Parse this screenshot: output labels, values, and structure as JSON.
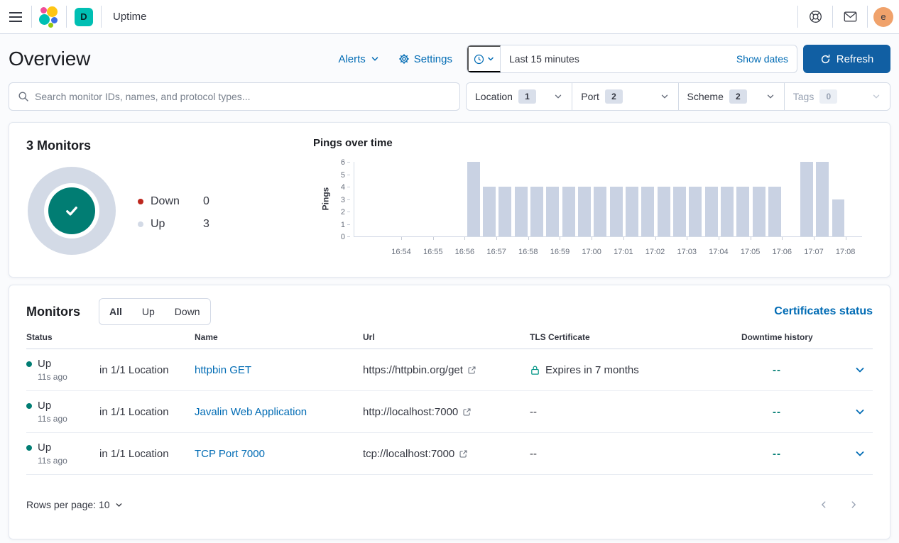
{
  "app": {
    "breadcrumb": "Uptime",
    "deployment_badge": "D",
    "avatar_initial": "e"
  },
  "page_header": {
    "title": "Overview",
    "alerts_label": "Alerts",
    "settings_label": "Settings",
    "time_range_value": "Last 15 minutes",
    "show_dates_label": "Show dates",
    "refresh_label": "Refresh"
  },
  "filters": {
    "search_placeholder": "Search monitor IDs, names, and protocol types...",
    "items": [
      {
        "label": "Location",
        "count": "1",
        "disabled": false
      },
      {
        "label": "Port",
        "count": "2",
        "disabled": false
      },
      {
        "label": "Scheme",
        "count": "2",
        "disabled": false
      },
      {
        "label": "Tags",
        "count": "0",
        "disabled": true
      }
    ]
  },
  "snapshot": {
    "title": "3 Monitors",
    "legend": [
      {
        "label": "Down",
        "value": "0",
        "color": "#BD271E"
      },
      {
        "label": "Up",
        "value": "3",
        "color": "#D3DAE6"
      }
    ]
  },
  "chart_data": {
    "type": "bar",
    "title": "Pings over time",
    "ylabel": "Pings",
    "ylim": [
      0,
      6
    ],
    "y_ticks": [
      0,
      1,
      2,
      3,
      4,
      5,
      6
    ],
    "x_domain": [
      "16:52:30",
      "17:08:30"
    ],
    "bucket_seconds": 30,
    "bar_color": "#C9D2E3",
    "grid": false,
    "x_tick_labels": [
      "16:54",
      "16:55",
      "16:56",
      "16:57",
      "16:58",
      "16:59",
      "17:00",
      "17:01",
      "17:02",
      "17:03",
      "17:04",
      "17:05",
      "17:06",
      "17:07",
      "17:08"
    ],
    "x": [
      "16:56:00",
      "16:56:30",
      "16:57:00",
      "16:57:30",
      "16:58:00",
      "16:58:30",
      "16:59:00",
      "16:59:30",
      "17:00:00",
      "17:00:30",
      "17:01:00",
      "17:01:30",
      "17:02:00",
      "17:02:30",
      "17:03:00",
      "17:03:30",
      "17:04:00",
      "17:04:30",
      "17:05:00",
      "17:05:30",
      "17:06:00",
      "17:06:30",
      "17:07:00",
      "17:07:30"
    ],
    "values": [
      6,
      4,
      4,
      4,
      4,
      4,
      4,
      4,
      4,
      4,
      4,
      4,
      4,
      4,
      4,
      4,
      4,
      4,
      4,
      4,
      0,
      6,
      6,
      3
    ]
  },
  "monitors": {
    "title": "Monitors",
    "tabs": [
      {
        "label": "All",
        "active": true
      },
      {
        "label": "Up",
        "active": false
      },
      {
        "label": "Down",
        "active": false
      }
    ],
    "certificates_link": "Certificates status",
    "columns": {
      "status": "Status",
      "name": "Name",
      "url": "Url",
      "tls": "TLS Certificate",
      "downtime": "Downtime history"
    },
    "rows": [
      {
        "status": "Up",
        "checked": "11s ago",
        "location": "in 1/1 Location",
        "name": "httpbin GET",
        "url": "https://httpbin.org/get",
        "tls": "Expires in 7 months",
        "downtime": "--"
      },
      {
        "status": "Up",
        "checked": "11s ago",
        "location": "in 1/1 Location",
        "name": "Javalin Web Application",
        "url": "http://localhost:7000",
        "tls": "--",
        "downtime": "--"
      },
      {
        "status": "Up",
        "checked": "11s ago",
        "location": "in 1/1 Location",
        "name": "TCP Port 7000",
        "url": "tcp://localhost:7000",
        "tls": "--",
        "downtime": "--"
      }
    ],
    "footer": {
      "rows_per_page": "Rows per page: 10"
    }
  },
  "colors": {
    "link": "#006BB4",
    "success": "#017D73",
    "danger": "#BD271E",
    "donut_ring": "#D3DAE6",
    "refresh_button": "#115FA3"
  }
}
